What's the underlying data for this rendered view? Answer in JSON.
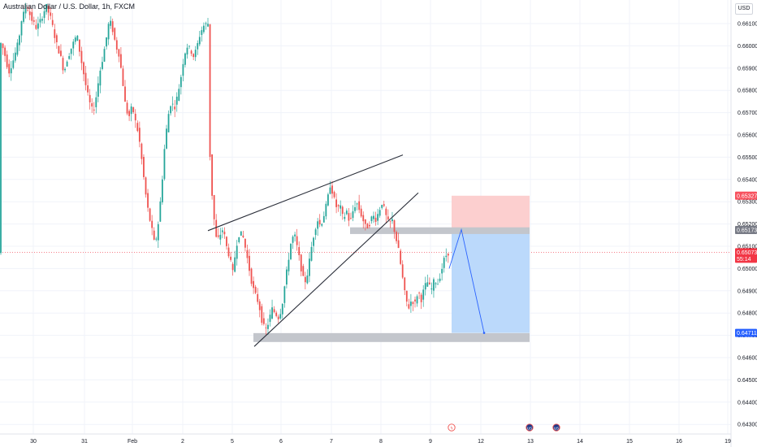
{
  "header": {
    "title": "Australian Dollar / U.S. Dollar, 1h, FXCM",
    "currency": "USD"
  },
  "colors": {
    "up": "#26a69a",
    "down": "#ef5350",
    "grid": "#f0f3fa",
    "zone": "#c3c6cc",
    "target_fill": "#bbd9fb",
    "stop_fill": "#fccfcf",
    "line": "#2a2e39",
    "price_badge": "#f23645",
    "level_badge": "#2962ff",
    "stop_badge": "#f7525f",
    "entry_badge": "#787b86"
  },
  "chart_data": {
    "type": "candlestick",
    "symbol": "AUDUSD",
    "timeframe": "1h",
    "ylim": [
      0.6424,
      0.6622
    ],
    "yticks": [
      0.643,
      0.644,
      0.645,
      0.646,
      0.647,
      0.648,
      0.649,
      0.65,
      0.651,
      0.652,
      0.653,
      0.654,
      0.655,
      0.656,
      0.657,
      0.658,
      0.659,
      0.66,
      0.661
    ],
    "ytick_labels": [
      "0.64300",
      "0.64400",
      "0.64500",
      "0.64600",
      "0.64700",
      "0.64800",
      "0.64900",
      "0.65000",
      "0.65100",
      "0.65200",
      "0.65300",
      "0.65400",
      "0.65500",
      "0.65600",
      "0.65700",
      "0.65800",
      "0.65900",
      "0.66000",
      "0.66100"
    ],
    "xticks": [
      "30",
      "31",
      "Feb",
      "2",
      "5",
      "6",
      "7",
      "8",
      "9",
      "12",
      "13",
      "14",
      "15",
      "16",
      "19"
    ],
    "price_path": [
      [
        0,
        0.6603
      ],
      [
        6,
        0.6598
      ],
      [
        12,
        0.6588
      ],
      [
        18,
        0.6594
      ],
      [
        24,
        0.6602
      ],
      [
        28,
        0.6612
      ],
      [
        34,
        0.6618
      ],
      [
        40,
        0.6612
      ],
      [
        46,
        0.6608
      ],
      [
        52,
        0.6612
      ],
      [
        58,
        0.6618
      ],
      [
        64,
        0.6612
      ],
      [
        70,
        0.6602
      ],
      [
        76,
        0.6595
      ],
      [
        80,
        0.6588
      ],
      [
        84,
        0.6594
      ],
      [
        90,
        0.66
      ],
      [
        96,
        0.6605
      ],
      [
        100,
        0.6596
      ],
      [
        104,
        0.6588
      ],
      [
        108,
        0.658
      ],
      [
        112,
        0.6574
      ],
      [
        116,
        0.657
      ],
      [
        120,
        0.6578
      ],
      [
        124,
        0.6588
      ],
      [
        128,
        0.6595
      ],
      [
        132,
        0.6603
      ],
      [
        136,
        0.6612
      ],
      [
        140,
        0.6607
      ],
      [
        144,
        0.66
      ],
      [
        148,
        0.6596
      ],
      [
        152,
        0.6585
      ],
      [
        156,
        0.6572
      ],
      [
        160,
        0.6568
      ],
      [
        164,
        0.6573
      ],
      [
        168,
        0.6566
      ],
      [
        172,
        0.656
      ],
      [
        176,
        0.6548
      ],
      [
        180,
        0.6535
      ],
      [
        184,
        0.6525
      ],
      [
        188,
        0.6518
      ],
      [
        192,
        0.651
      ],
      [
        196,
        0.652
      ],
      [
        200,
        0.6535
      ],
      [
        204,
        0.6555
      ],
      [
        208,
        0.6568
      ],
      [
        212,
        0.6575
      ],
      [
        216,
        0.6572
      ],
      [
        220,
        0.6578
      ],
      [
        224,
        0.6586
      ],
      [
        228,
        0.6596
      ],
      [
        232,
        0.66
      ],
      [
        236,
        0.6598
      ],
      [
        240,
        0.6595
      ],
      [
        244,
        0.66
      ],
      [
        248,
        0.6606
      ],
      [
        252,
        0.6609
      ],
      [
        256,
        0.661
      ],
      [
        258,
        0.661
      ],
      [
        260,
        0.6545
      ],
      [
        264,
        0.6525
      ],
      [
        268,
        0.6512
      ],
      [
        272,
        0.6515
      ],
      [
        276,
        0.6518
      ],
      [
        280,
        0.651
      ],
      [
        284,
        0.6505
      ],
      [
        288,
        0.6498
      ],
      [
        292,
        0.651
      ],
      [
        296,
        0.6516
      ],
      [
        300,
        0.6515
      ],
      [
        304,
        0.6508
      ],
      [
        308,
        0.65
      ],
      [
        312,
        0.6492
      ],
      [
        316,
        0.6488
      ],
      [
        320,
        0.6484
      ],
      [
        324,
        0.6476
      ],
      [
        328,
        0.6472
      ],
      [
        332,
        0.6476
      ],
      [
        336,
        0.6482
      ],
      [
        340,
        0.648
      ],
      [
        344,
        0.6478
      ],
      [
        348,
        0.6482
      ],
      [
        352,
        0.6493
      ],
      [
        356,
        0.6503
      ],
      [
        360,
        0.6513
      ],
      [
        364,
        0.6515
      ],
      [
        368,
        0.6508
      ],
      [
        372,
        0.65
      ],
      [
        376,
        0.6493
      ],
      [
        380,
        0.6498
      ],
      [
        384,
        0.6508
      ],
      [
        388,
        0.6516
      ],
      [
        392,
        0.6522
      ],
      [
        396,
        0.6519
      ],
      [
        400,
        0.6524
      ],
      [
        404,
        0.653
      ],
      [
        408,
        0.6538
      ],
      [
        412,
        0.6532
      ],
      [
        416,
        0.6527
      ],
      [
        420,
        0.6528
      ],
      [
        424,
        0.6522
      ],
      [
        428,
        0.6526
      ],
      [
        432,
        0.652
      ],
      [
        436,
        0.6526
      ],
      [
        440,
        0.653
      ],
      [
        444,
        0.6526
      ],
      [
        448,
        0.6522
      ],
      [
        452,
        0.6518
      ],
      [
        456,
        0.652
      ],
      [
        460,
        0.6524
      ],
      [
        464,
        0.6522
      ],
      [
        468,
        0.6526
      ],
      [
        472,
        0.653
      ],
      [
        476,
        0.6524
      ],
      [
        480,
        0.652
      ],
      [
        484,
        0.6522
      ],
      [
        488,
        0.6515
      ],
      [
        492,
        0.6508
      ],
      [
        496,
        0.6498
      ],
      [
        500,
        0.6488
      ],
      [
        504,
        0.6482
      ],
      [
        508,
        0.6486
      ],
      [
        512,
        0.6484
      ],
      [
        516,
        0.649
      ],
      [
        520,
        0.6486
      ],
      [
        524,
        0.6492
      ],
      [
        528,
        0.6494
      ],
      [
        532,
        0.649
      ],
      [
        536,
        0.6495
      ],
      [
        540,
        0.6493
      ],
      [
        544,
        0.6498
      ],
      [
        548,
        0.6504
      ],
      [
        552,
        0.6507
      ]
    ],
    "current_price": "0.65073",
    "countdown": "55:14",
    "annotations": {
      "wedge_upper": [
        [
          256,
          0.6517
        ],
        [
          496,
          0.6551
        ]
      ],
      "wedge_lower": [
        [
          313,
          0.6465
        ],
        [
          515,
          0.6534
        ]
      ],
      "support_zone": {
        "x0": 312,
        "x1": 652,
        "y0": 0.6467,
        "y1": 0.6471
      },
      "resistance_zone": {
        "x0": 431,
        "x1": 652,
        "y0": 0.65155,
        "y1": 0.65185
      },
      "stop_box": {
        "x0": 556,
        "x1": 652,
        "top": 0.65327,
        "bottom": 0.65173
      },
      "target_box": {
        "x0": 556,
        "x1": 652,
        "top": 0.65173,
        "bottom": 0.64711
      },
      "projection": [
        [
          553,
          0.65
        ],
        [
          568,
          0.65175
        ],
        [
          596,
          0.64711
        ]
      ]
    },
    "price_labels": [
      {
        "key": "stop",
        "value": "0.65327",
        "price": 0.65327
      },
      {
        "key": "entry",
        "value": "0.65173",
        "price": 0.65173
      },
      {
        "key": "target",
        "value": "0.64711",
        "price": 0.64711
      }
    ],
    "event_markers": [
      {
        "x": 556,
        "label": "ϟ"
      },
      {
        "x": 652,
        "label": "us"
      },
      {
        "x": 685,
        "label": "us"
      }
    ]
  }
}
